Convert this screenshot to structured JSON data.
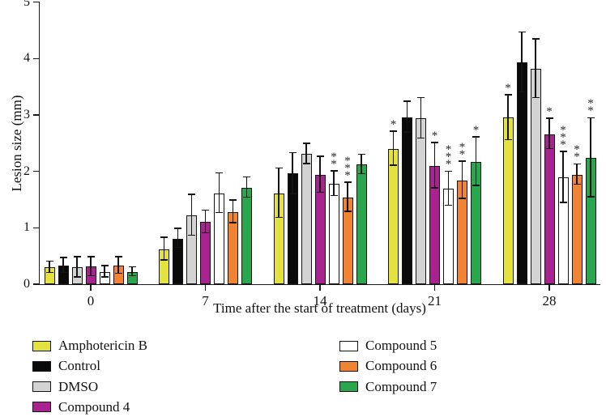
{
  "chart_data": {
    "type": "bar",
    "title": "",
    "xlabel": "Time after the start of treatment (days)",
    "ylabel": "Lesion size (mm)",
    "ylim": [
      0,
      5
    ],
    "yticks": [
      0,
      1,
      2,
      3,
      4,
      5
    ],
    "categories": [
      "0",
      "7",
      "14",
      "21",
      "28"
    ],
    "grid": false,
    "legend_position": "bottom",
    "error_bars": true,
    "significance_symbol": "*",
    "series": [
      {
        "name": "Amphotericin B",
        "color": "#e4e23e",
        "values": [
          0.3,
          0.62,
          1.61,
          2.4,
          2.95
        ],
        "errors": [
          0.1,
          0.2,
          0.44,
          0.3,
          0.4
        ],
        "markers": [
          "",
          "",
          "",
          "*",
          "*"
        ]
      },
      {
        "name": "Control",
        "color": "#0a0a0a",
        "values": [
          0.33,
          0.81,
          1.96,
          2.96,
          3.93
        ],
        "errors": [
          0.13,
          0.17,
          0.36,
          0.27,
          0.53
        ],
        "markers": [
          "",
          "",
          "",
          "",
          ""
        ]
      },
      {
        "name": "DMSO",
        "color": "#d3d3d3",
        "values": [
          0.3,
          1.22,
          2.31,
          2.94,
          3.82
        ],
        "errors": [
          0.18,
          0.36,
          0.18,
          0.36,
          0.52
        ],
        "markers": [
          "",
          "",
          "",
          "",
          ""
        ]
      },
      {
        "name": "Compound 4",
        "color": "#a82390",
        "values": [
          0.31,
          1.1,
          1.94,
          2.1,
          2.66
        ],
        "errors": [
          0.17,
          0.2,
          0.32,
          0.4,
          0.27
        ],
        "markers": [
          "",
          "",
          "",
          "*",
          "*"
        ]
      },
      {
        "name": "Compound 5",
        "color": "#ffffff",
        "values": [
          0.22,
          1.61,
          1.78,
          1.69,
          1.89
        ],
        "errors": [
          0.1,
          0.35,
          0.22,
          0.3,
          0.45
        ],
        "markers": [
          "",
          "",
          "**",
          "***",
          "***"
        ]
      },
      {
        "name": "Compound 6",
        "color": "#f18432",
        "values": [
          0.33,
          1.28,
          1.54,
          1.84,
          1.94
        ],
        "errors": [
          0.15,
          0.2,
          0.26,
          0.33,
          0.18
        ],
        "markers": [
          "",
          "",
          "***",
          "**",
          "**"
        ]
      },
      {
        "name": "Compound 7",
        "color": "#2aa64e",
        "values": [
          0.22,
          1.71,
          2.12,
          2.17,
          2.24
        ],
        "errors": [
          0.08,
          0.18,
          0.17,
          0.43,
          0.7
        ],
        "markers": [
          "",
          "",
          "",
          "*",
          "**"
        ]
      }
    ]
  }
}
